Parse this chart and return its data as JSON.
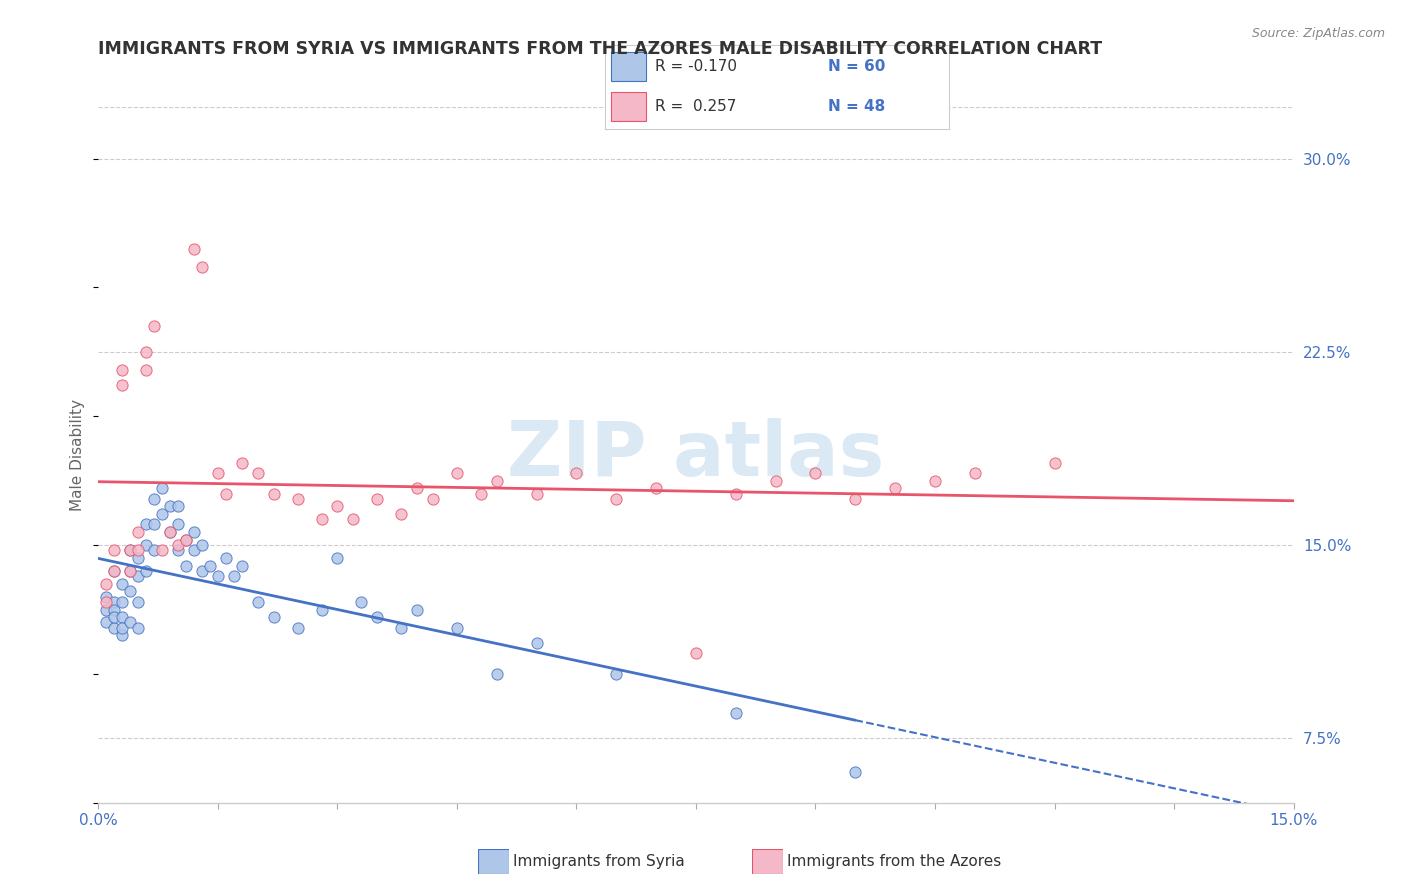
{
  "title": "IMMIGRANTS FROM SYRIA VS IMMIGRANTS FROM THE AZORES MALE DISABILITY CORRELATION CHART",
  "source": "Source: ZipAtlas.com",
  "ylabel": "Male Disability",
  "xlim": [
    0.0,
    0.15
  ],
  "ylim": [
    0.05,
    0.32
  ],
  "yticks_right": [
    0.075,
    0.15,
    0.225,
    0.3
  ],
  "ytick_labels_right": [
    "7.5%",
    "15.0%",
    "22.5%",
    "30.0%"
  ],
  "legend_R1": "-0.170",
  "legend_N1": "60",
  "legend_R2": "0.257",
  "legend_N2": "48",
  "color_syria": "#aec6e8",
  "color_azores": "#f4b8c8",
  "color_syria_line": "#4472c4",
  "color_azores_line": "#e8546a",
  "color_tick": "#4472c4",
  "watermark_color": "#cce0f0",
  "syria_x": [
    0.001,
    0.001,
    0.001,
    0.002,
    0.002,
    0.002,
    0.002,
    0.002,
    0.003,
    0.003,
    0.003,
    0.003,
    0.003,
    0.004,
    0.004,
    0.004,
    0.004,
    0.005,
    0.005,
    0.005,
    0.005,
    0.006,
    0.006,
    0.006,
    0.007,
    0.007,
    0.007,
    0.008,
    0.008,
    0.009,
    0.009,
    0.01,
    0.01,
    0.01,
    0.011,
    0.011,
    0.012,
    0.012,
    0.013,
    0.013,
    0.014,
    0.015,
    0.016,
    0.017,
    0.018,
    0.02,
    0.022,
    0.025,
    0.028,
    0.03,
    0.033,
    0.035,
    0.038,
    0.04,
    0.045,
    0.05,
    0.055,
    0.065,
    0.08,
    0.095
  ],
  "syria_y": [
    0.125,
    0.13,
    0.12,
    0.14,
    0.128,
    0.125,
    0.118,
    0.122,
    0.135,
    0.128,
    0.122,
    0.115,
    0.118,
    0.148,
    0.14,
    0.132,
    0.12,
    0.145,
    0.138,
    0.128,
    0.118,
    0.158,
    0.15,
    0.14,
    0.168,
    0.158,
    0.148,
    0.172,
    0.162,
    0.165,
    0.155,
    0.165,
    0.158,
    0.148,
    0.152,
    0.142,
    0.155,
    0.148,
    0.15,
    0.14,
    0.142,
    0.138,
    0.145,
    0.138,
    0.142,
    0.128,
    0.122,
    0.118,
    0.125,
    0.145,
    0.128,
    0.122,
    0.118,
    0.125,
    0.118,
    0.1,
    0.112,
    0.1,
    0.085,
    0.062
  ],
  "azores_x": [
    0.001,
    0.001,
    0.002,
    0.002,
    0.003,
    0.003,
    0.004,
    0.004,
    0.005,
    0.005,
    0.006,
    0.006,
    0.007,
    0.008,
    0.009,
    0.01,
    0.011,
    0.012,
    0.013,
    0.015,
    0.016,
    0.018,
    0.02,
    0.022,
    0.025,
    0.028,
    0.03,
    0.032,
    0.035,
    0.038,
    0.04,
    0.042,
    0.045,
    0.048,
    0.05,
    0.055,
    0.06,
    0.065,
    0.07,
    0.075,
    0.08,
    0.085,
    0.09,
    0.095,
    0.1,
    0.105,
    0.11,
    0.12
  ],
  "azores_y": [
    0.135,
    0.128,
    0.148,
    0.14,
    0.218,
    0.212,
    0.148,
    0.14,
    0.155,
    0.148,
    0.225,
    0.218,
    0.235,
    0.148,
    0.155,
    0.15,
    0.152,
    0.265,
    0.258,
    0.178,
    0.17,
    0.182,
    0.178,
    0.17,
    0.168,
    0.16,
    0.165,
    0.16,
    0.168,
    0.162,
    0.172,
    0.168,
    0.178,
    0.17,
    0.175,
    0.17,
    0.178,
    0.168,
    0.172,
    0.108,
    0.17,
    0.175,
    0.178,
    0.168,
    0.172,
    0.175,
    0.178,
    0.182
  ]
}
